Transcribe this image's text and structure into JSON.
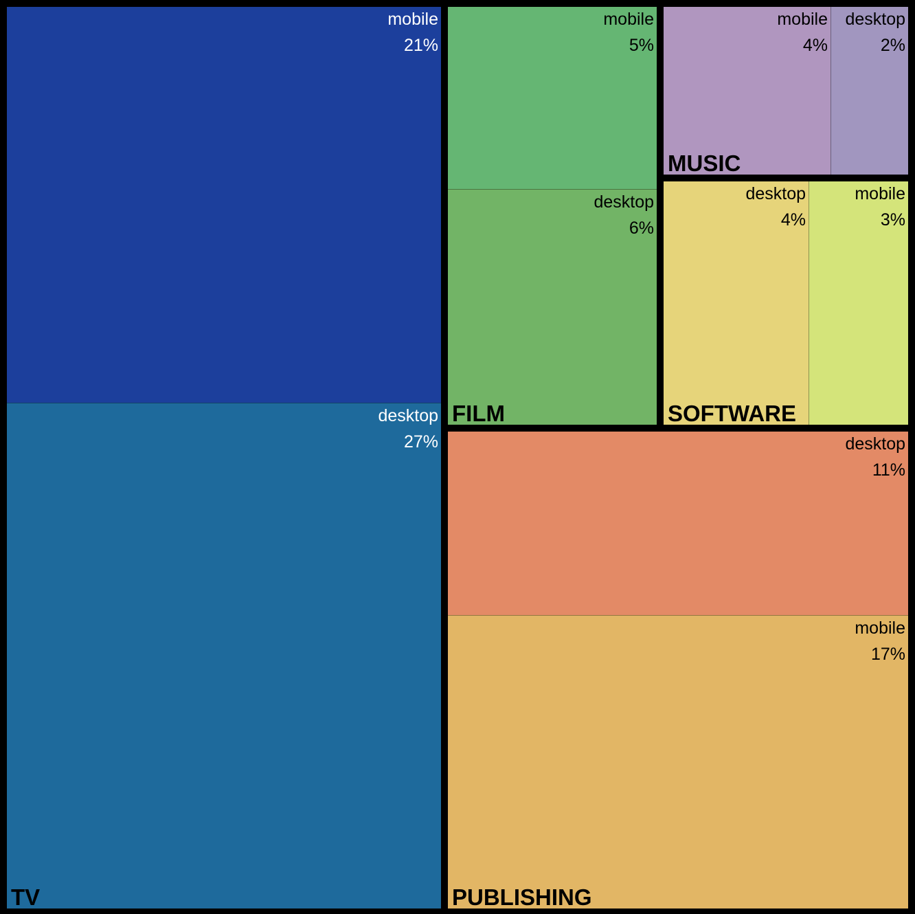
{
  "chart_data": {
    "type": "treemap",
    "groups": [
      {
        "name": "TV",
        "leaves": [
          {
            "name": "mobile",
            "label": "21%",
            "value": 21,
            "color": "#1c3f9c"
          },
          {
            "name": "desktop",
            "label": "27%",
            "value": 27,
            "color": "#1e6a9c"
          }
        ]
      },
      {
        "name": "FILM",
        "leaves": [
          {
            "name": "mobile",
            "label": "5%",
            "value": 5,
            "color": "#65b673"
          },
          {
            "name": "desktop",
            "label": "6%",
            "value": 6,
            "color": "#72b466"
          }
        ]
      },
      {
        "name": "MUSIC",
        "leaves": [
          {
            "name": "mobile",
            "label": "4%",
            "value": 4,
            "color": "#b096bf"
          },
          {
            "name": "desktop",
            "label": "2%",
            "value": 2,
            "color": "#a196bf"
          }
        ]
      },
      {
        "name": "SOFTWARE",
        "leaves": [
          {
            "name": "desktop",
            "label": "4%",
            "value": 4,
            "color": "#e6d47a"
          },
          {
            "name": "mobile",
            "label": "3%",
            "value": 3,
            "color": "#d4e47a"
          }
        ]
      },
      {
        "name": "PUBLISHING",
        "leaves": [
          {
            "name": "desktop",
            "label": "11%",
            "value": 11,
            "color": "#e38a66"
          },
          {
            "name": "mobile",
            "label": "17%",
            "value": 17,
            "color": "#e2b665"
          }
        ]
      }
    ]
  }
}
